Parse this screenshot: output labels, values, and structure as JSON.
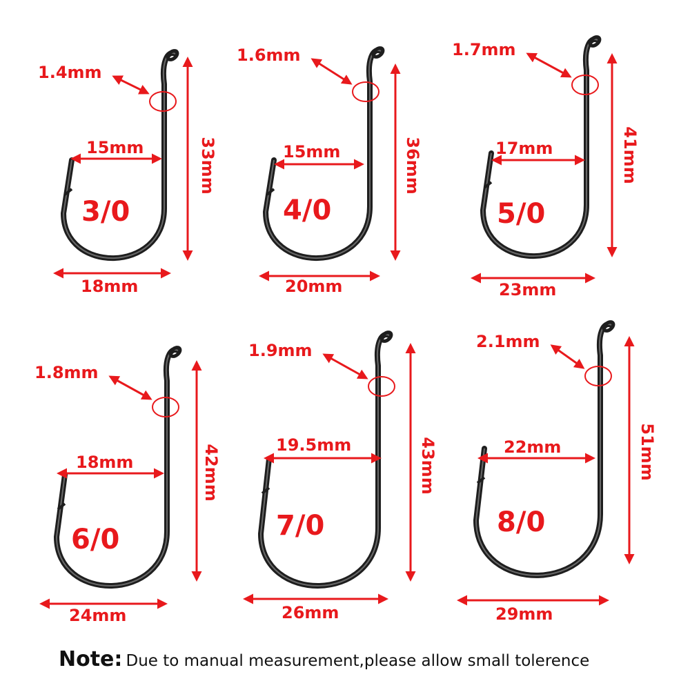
{
  "hooks": [
    {
      "size": "3/0",
      "wire": "1.4mm",
      "gap": "15mm",
      "length": "33mm",
      "width": "18mm"
    },
    {
      "size": "4/0",
      "wire": "1.6mm",
      "gap": "15mm",
      "length": "36mm",
      "width": "20mm"
    },
    {
      "size": "5/0",
      "wire": "1.7mm",
      "gap": "17mm",
      "length": "41mm",
      "width": "23mm"
    },
    {
      "size": "6/0",
      "wire": "1.8mm",
      "gap": "18mm",
      "length": "42mm",
      "width": "24mm"
    },
    {
      "size": "7/0",
      "wire": "1.9mm",
      "gap": "19.5mm",
      "length": "43mm",
      "width": "26mm"
    },
    {
      "size": "8/0",
      "wire": "2.1mm",
      "gap": "22mm",
      "length": "51mm",
      "width": "29mm"
    }
  ],
  "note": {
    "label": "Note:",
    "text": "Due to manual measurement,please allow small tolerence"
  },
  "colors": {
    "annotation": "#e8191c",
    "hook": "#1e1e1e"
  }
}
